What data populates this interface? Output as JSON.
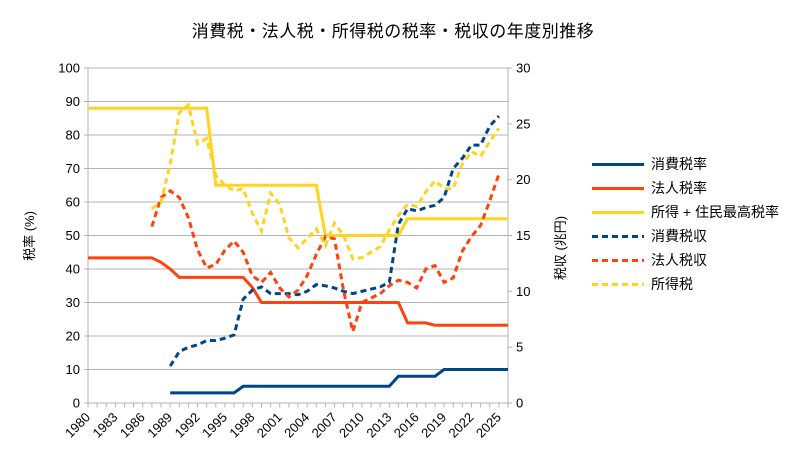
{
  "chart_data": {
    "type": "line",
    "title": "消費税・法人税・所得税の税率・税収の年度別推移",
    "grid": "horizontal-only",
    "legend_position": "right",
    "x_axis": {
      "min": 1980,
      "max": 2026,
      "minor_tick_interval": 1,
      "label_interval": 3,
      "tick_labels": [
        "1980",
        "1983",
        "1986",
        "1989",
        "1992",
        "1995",
        "1998",
        "2001",
        "2004",
        "2007",
        "2010",
        "2013",
        "2016",
        "2019",
        "2022",
        "2025"
      ]
    },
    "left_axis": {
      "title": "税率 (%)",
      "min": 0,
      "max": 100,
      "tick_interval": 10,
      "tick_labels": [
        "0",
        "10",
        "20",
        "30",
        "40",
        "50",
        "60",
        "70",
        "80",
        "90",
        "100"
      ]
    },
    "right_axis": {
      "title": "税収 (兆円)",
      "min": 0,
      "max": 30,
      "tick_interval": 5,
      "tick_labels": [
        "0",
        "5",
        "10",
        "15",
        "20",
        "25",
        "30"
      ]
    },
    "colors": {
      "navy": "#004586",
      "orange": "#ff420e",
      "yellow": "#ffd320",
      "grid": "#b3b3b3"
    },
    "series": [
      {
        "id": "consumption-tax-rate",
        "name": "消費税率",
        "color": "#004586",
        "line_style": "solid",
        "axis": "left",
        "start_year": 1989,
        "values": [
          3,
          3,
          3,
          3,
          3,
          3,
          3,
          3,
          5,
          5,
          5,
          5,
          5,
          5,
          5,
          5,
          5,
          5,
          5,
          5,
          5,
          5,
          5,
          5,
          5,
          8,
          8,
          8,
          8,
          8,
          10,
          10,
          10,
          10,
          10,
          10,
          10,
          10
        ]
      },
      {
        "id": "corporate-tax-rate",
        "name": "法人税率",
        "color": "#ff420e",
        "line_style": "solid",
        "axis": "left",
        "start_year": 1980,
        "values": [
          43.3,
          43.3,
          43.3,
          43.3,
          43.3,
          43.3,
          43.3,
          43.3,
          42,
          40,
          37.5,
          37.5,
          37.5,
          37.5,
          37.5,
          37.5,
          37.5,
          37.5,
          34.5,
          30,
          30,
          30,
          30,
          30,
          30,
          30,
          30,
          30,
          30,
          30,
          30,
          30,
          30,
          30,
          30,
          23.9,
          23.9,
          23.9,
          23.2,
          23.2,
          23.2,
          23.2,
          23.2,
          23.2,
          23.2,
          23.2,
          23.2
        ]
      },
      {
        "id": "income-resident-max-rate",
        "name": "所得 + 住民最高税率",
        "color": "#ffd320",
        "line_style": "solid",
        "axis": "left",
        "start_year": 1980,
        "values": [
          88,
          88,
          88,
          88,
          88,
          88,
          88,
          88,
          88,
          88,
          88,
          88,
          88,
          88,
          65,
          65,
          65,
          65,
          65,
          65,
          65,
          65,
          65,
          65,
          65,
          65,
          50,
          50,
          50,
          50,
          50,
          50,
          50,
          50,
          50,
          55,
          55,
          55,
          55,
          55,
          55,
          55,
          55,
          55,
          55,
          55,
          55
        ]
      },
      {
        "id": "consumption-tax-revenue",
        "name": "消費税収",
        "color": "#004586",
        "line_style": "dashed",
        "axis": "right",
        "start_year": 1989,
        "values": [
          3.3,
          4.6,
          5.0,
          5.2,
          5.6,
          5.6,
          5.8,
          6.1,
          9.3,
          10.1,
          10.4,
          9.8,
          9.8,
          9.8,
          9.7,
          10.0,
          10.6,
          10.5,
          10.3,
          10.0,
          9.8,
          10.0,
          10.2,
          10.4,
          10.8,
          16.0,
          17.4,
          17.2,
          17.5,
          17.7,
          18.4,
          21.0,
          21.9,
          23.1,
          23.1,
          24.8,
          25.7
        ]
      },
      {
        "id": "corporate-tax-revenue",
        "name": "法人税収",
        "color": "#ff420e",
        "line_style": "dashed",
        "axis": "right",
        "start_year": 1987,
        "values": [
          15.8,
          18.4,
          19.0,
          18.4,
          16.6,
          13.7,
          12.1,
          12.4,
          13.7,
          14.5,
          13.5,
          11.4,
          10.8,
          11.7,
          10.3,
          9.5,
          10.1,
          11.4,
          13.3,
          14.9,
          14.7,
          10.0,
          6.4,
          9.0,
          9.4,
          9.8,
          10.5,
          11.0,
          10.8,
          10.3,
          12.0,
          12.3,
          10.8,
          11.2,
          13.6,
          14.9,
          15.9,
          18.1,
          20.5
        ]
      },
      {
        "id": "income-tax-revenue",
        "name": "所得税",
        "color": "#ffd320",
        "line_style": "dashed",
        "axis": "right",
        "start_year": 1987,
        "values": [
          17.4,
          18.0,
          21.4,
          26.0,
          26.7,
          23.2,
          23.7,
          20.4,
          19.5,
          19.0,
          19.2,
          17.0,
          15.4,
          18.8,
          17.8,
          14.8,
          13.9,
          14.7,
          15.6,
          14.1,
          16.1,
          15.0,
          12.9,
          13.0,
          13.5,
          14.0,
          15.5,
          16.8,
          17.8,
          17.6,
          18.9,
          19.9,
          19.2,
          19.2,
          21.4,
          22.5,
          22.1,
          23.4,
          24.6
        ]
      }
    ]
  }
}
